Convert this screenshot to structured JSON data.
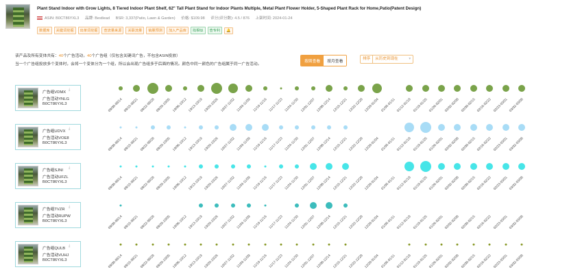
{
  "product": {
    "title": "Plant Stand Indoor with Grow Lights, 8 Tiered Indoor Plant Shelf, 62\" Tall Plant Stand for Indoor Plants Multiple, Metal Plant Flower Holder, 5-Shaped Plant Rack for Home,Patio(Patent Design)",
    "asin": "ASIN: B0CT86YXL3",
    "brand": "品牌: Bestlead",
    "bsr": "BSR: 3,337(Patio, Lawn & Garden)",
    "price": "价格: $109.98",
    "rating": "评分(评分数): 4.5 / 876",
    "listed": "上架时间: 2024-01-24",
    "tags": [
      {
        "label": "数据库",
        "style": "orange"
      },
      {
        "label": "关键词挖掘",
        "style": "orange"
      },
      {
        "label": "出单词挖掘",
        "style": "orange"
      },
      {
        "label": "查流量来源",
        "style": "orange"
      },
      {
        "label": "关联流量",
        "style": "orange"
      },
      {
        "label": "销量预测",
        "style": "orange"
      },
      {
        "label": "加入产品库",
        "style": "orange"
      },
      {
        "label": "找相似",
        "style": "green"
      },
      {
        "label": "查专利",
        "style": "green"
      },
      {
        "label": "🔔",
        "style": "orange"
      }
    ]
  },
  "summary": {
    "line1_a": "该产品及所有变体共有：",
    "line1_campaigns_num": "40",
    "line1_b": "个广告活动，",
    "line1_groups_num": "40",
    "line1_c": "个广告组（仅包含关键词广告，不包含ASIN投放）",
    "line2": "当一个广告组投放多个变体时，会将一个变体分为一个组，所以会出现广告组多于后面的情况。颜色中同一颜色的广告组属于同一广告活动。"
  },
  "controls": {
    "by_week": "按周查看",
    "by_month": "按月查看",
    "sort_label": "排序",
    "sort_value": "从历史到现在"
  },
  "colors": {
    "olive": "#7aa34a",
    "lightblue": "#a8dcf6",
    "cyan": "#47e5e8",
    "teal": "#3cbcbc",
    "darkolive": "#8a9a2a"
  },
  "weeks": [
    "09/08-09/14",
    "09/15-09/21",
    "09/22-09/28",
    "09/29-10/05",
    "10/06-10/12",
    "10/13-10/19",
    "10/20-10/26",
    "10/27-11/02",
    "11/03-11/09",
    "11/10-11/16",
    "11/17-11/23",
    "11/24-11/30",
    "12/01-12/07",
    "12/08-12/14",
    "12/15-12/21",
    "12/22-12/28",
    "12/29-01/04",
    "01/05-01/11",
    "01/12-01/18",
    "01/19-01/25",
    "01/26-02/01",
    "02/02-02/08",
    "02/09-02/15",
    "02/16-02/22",
    "02/23-03/01",
    "03/02-03/08"
  ],
  "groups": [
    {
      "group_name": "广告组VDMX",
      "campaign_name": "广告活动YNLG",
      "asin": "B0CT86YXL3",
      "color": "olive",
      "bubble_levels": [
        2,
        3,
        5,
        3,
        2,
        3,
        5,
        4,
        3,
        2,
        1,
        2,
        2,
        3,
        2,
        3,
        4,
        0,
        3,
        3,
        3,
        3,
        3,
        3,
        3,
        3
      ]
    },
    {
      "group_name": "广告组UDVX",
      "campaign_name": "广告活动VOE8",
      "asin": "B0CT86YXL3",
      "color": "lightblue",
      "bubble_levels": [
        1,
        1,
        2,
        2,
        1,
        2,
        2,
        3,
        3,
        3,
        2,
        2,
        2,
        2,
        2,
        0,
        0,
        0,
        4,
        5,
        3,
        3,
        3,
        3,
        3,
        3
      ]
    },
    {
      "group_name": "广告组SJNI",
      "campaign_name": "广告活动UFZL",
      "asin": "B0CT86YXL3",
      "color": "cyan",
      "bubble_levels": [
        1,
        1,
        1,
        1,
        1,
        2,
        2,
        2,
        2,
        1,
        2,
        2,
        3,
        3,
        3,
        0,
        0,
        0,
        4,
        5,
        3,
        3,
        3,
        3,
        3,
        3
      ]
    },
    {
      "group_name": "广告组TVZR",
      "campaign_name": "广告活动RUPW",
      "asin": "B0CT86YXL3",
      "color": "teal",
      "bubble_levels": [
        1,
        0,
        0,
        0,
        0,
        2,
        2,
        2,
        2,
        1,
        0,
        2,
        3,
        3,
        2,
        0,
        0,
        0,
        0,
        0,
        0,
        0,
        0,
        0,
        0,
        0
      ]
    },
    {
      "group_name": "广告组QULB",
      "campaign_name": "广告活动VUHJ",
      "asin": "B0CT86YXL3",
      "color": "darkolive",
      "bubble_levels": [
        1,
        1,
        1,
        1,
        1,
        1,
        1,
        1,
        1,
        1,
        1,
        1,
        1,
        1,
        1,
        0,
        0,
        0,
        1,
        1,
        1,
        1,
        1,
        1,
        1,
        1
      ]
    }
  ]
}
